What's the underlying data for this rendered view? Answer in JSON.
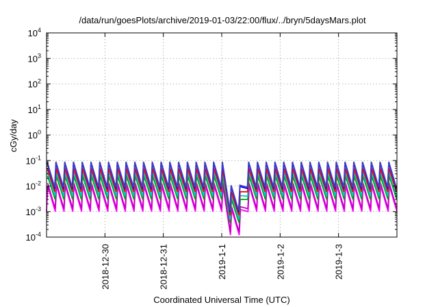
{
  "chart_data": {
    "type": "line",
    "title": "/data/run/goesPlots/archive/2019-01-03/22:00/flux/../bryn/5daysMars.plot",
    "xlabel": "Coordinated Universal Time (UTC)",
    "ylabel": "cGy/day",
    "yscale": "log",
    "ylim": [
      0.0001,
      10000
    ],
    "yticks": [
      {
        "value": 0.0001,
        "base": "10",
        "exp": "-4"
      },
      {
        "value": 0.001,
        "base": "10",
        "exp": "-3"
      },
      {
        "value": 0.01,
        "base": "10",
        "exp": "-2"
      },
      {
        "value": 0.1,
        "base": "10",
        "exp": "-1"
      },
      {
        "value": 1,
        "base": "10",
        "exp": "0"
      },
      {
        "value": 10,
        "base": "10",
        "exp": "1"
      },
      {
        "value": 100,
        "base": "10",
        "exp": "2"
      },
      {
        "value": 1000,
        "base": "10",
        "exp": "3"
      },
      {
        "value": 10000,
        "base": "10",
        "exp": "4"
      }
    ],
    "xlim": [
      "2018-12-29 00:00",
      "2019-01-04 00:00"
    ],
    "xticks": [
      "2018-12-30",
      "2018-12-31",
      "2019-1-1",
      "2019-1-2",
      "2019-1-3"
    ],
    "grid": true,
    "legend": "none",
    "series": [
      {
        "color": "#ff00ff",
        "peak": 0.01,
        "trough": 0.001
      },
      {
        "color": "#c000c0",
        "peak": 0.013,
        "trough": 0.0013
      },
      {
        "color": "#00a000",
        "peak": 0.025,
        "trough": 0.003
      },
      {
        "color": "#00c8c8",
        "peak": 0.035,
        "trough": 0.004
      },
      {
        "color": "#ff0000",
        "peak": 0.05,
        "trough": 0.006
      },
      {
        "color": "#0000ff",
        "peak": 0.08,
        "trough": 0.008
      },
      {
        "color": "#4040c0",
        "peak": 0.09,
        "trough": 0.009
      }
    ],
    "dip": {
      "start": "2019-01-01 03:00",
      "end": "2019-01-01 09:00",
      "factor": 0.12
    }
  }
}
